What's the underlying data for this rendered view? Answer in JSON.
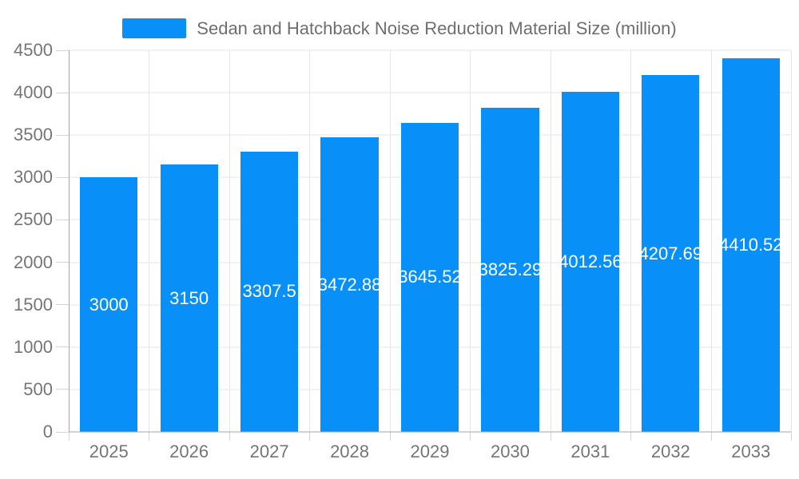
{
  "chart_data": {
    "type": "bar",
    "title": "Sedan and Hatchback Noise Reduction Material Size (million)",
    "categories": [
      "2025",
      "2026",
      "2027",
      "2028",
      "2029",
      "2030",
      "2031",
      "2032",
      "2033"
    ],
    "values": [
      3000,
      3150,
      3307.5,
      3472.88,
      3645.52,
      3825.29,
      4012.56,
      4207.69,
      4410.52
    ],
    "value_labels": [
      "3000",
      "3150",
      "3307.5",
      "3472.88",
      "3645.52",
      "3825.29",
      "4012.56",
      "4207.69",
      "4410.52"
    ],
    "xlabel": "",
    "ylabel": "",
    "ylim": [
      0,
      4500
    ],
    "ytick_step": 500,
    "ytick_labels": [
      "0",
      "500",
      "1000",
      "1500",
      "2000",
      "2500",
      "3000",
      "3500",
      "4000",
      "4500"
    ],
    "grid": true,
    "legend_position": "top",
    "bar_band_fraction": 0.72,
    "colors": {
      "bar": "#0990f8",
      "bar_label": "#ffffff",
      "grid_line": "#e6e6e6",
      "axis_line": "#a6a6a6",
      "tick_mark": "#d4d4d4",
      "axis_text": "#757575",
      "legend_text": "#6e6e6e"
    }
  }
}
